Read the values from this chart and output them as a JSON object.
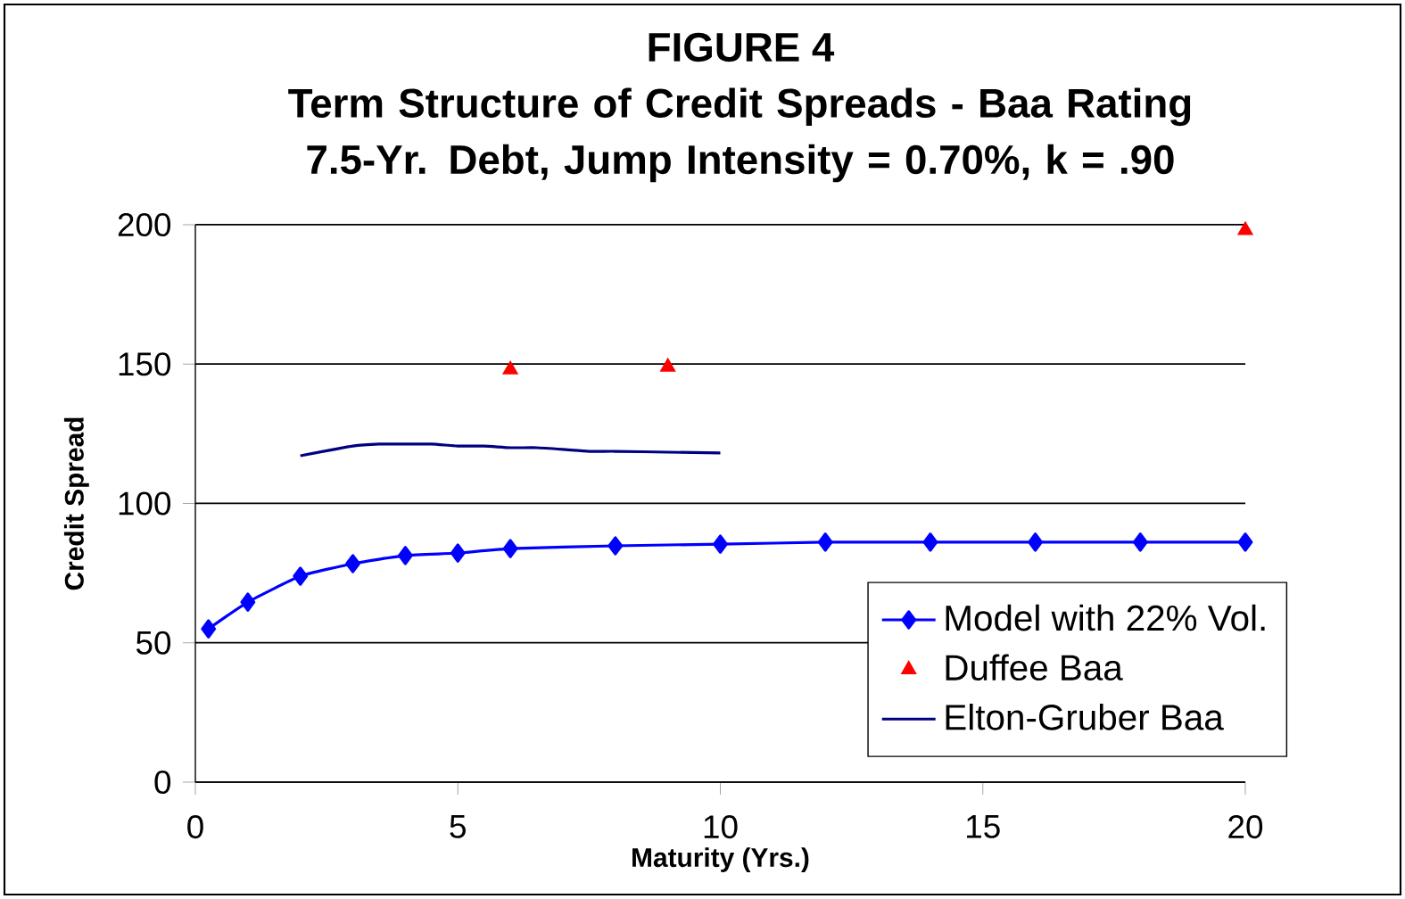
{
  "chart_data": {
    "type": "line",
    "title": "FIGURE 4",
    "subtitle": "Term Structure of Credit Spreads - Baa Rating 7.5-Yr. Debt, Jump Intensity = 0.70%, k = .90",
    "xlabel": "Maturity (Yrs.)",
    "ylabel": "Credit Spread",
    "xlim": [
      0,
      20
    ],
    "xticks": [
      0,
      5,
      10,
      15,
      20
    ],
    "ylim": [
      0,
      200
    ],
    "yticks": [
      0,
      50,
      100,
      150,
      200
    ],
    "grid": "y",
    "legend": "bottom right",
    "series": [
      {
        "name": "Model with 22% Vol.",
        "marker": "diamond",
        "color": "#0000ff",
        "x": [
          0.25,
          1,
          2,
          3,
          4,
          5,
          6,
          8,
          10,
          12,
          14,
          16,
          18,
          20
        ],
        "values": [
          55,
          64.6,
          73.9,
          78.4,
          81.3,
          82.2,
          83.8,
          84.8,
          85.4,
          86.1,
          86.1,
          86.1,
          86.1,
          86.1
        ]
      },
      {
        "name": "Duffee Baa",
        "type": "scatter",
        "marker": "triangle",
        "color": "#ff0000",
        "x": [
          6,
          9,
          20
        ],
        "values": [
          148,
          149,
          198
        ]
      },
      {
        "name": "Elton-Gruber Baa",
        "marker": "none",
        "color": "#000080",
        "x": [
          2,
          3,
          3.5,
          4,
          4.5,
          5,
          5.5,
          6,
          6.5,
          7,
          7.5,
          8,
          9,
          10
        ],
        "values": [
          117.1,
          120.6,
          121.3,
          121.3,
          121.3,
          120.6,
          120.6,
          120,
          120,
          119.4,
          118.7,
          118.7,
          118.4,
          118.1
        ]
      }
    ]
  }
}
